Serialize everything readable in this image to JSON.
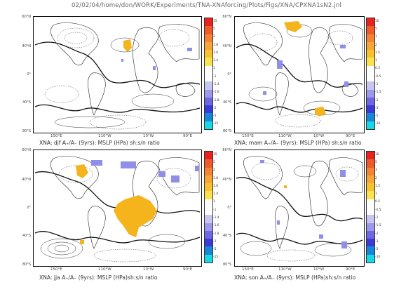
{
  "page_title": "02/02/04/home/don/WORK/Experiments/TNA-XNAforcing/Plots/Figs/XNA/CPXNA1sN2.jnl",
  "lat_labels": [
    "60°N",
    "40°N",
    "0°",
    "40°S",
    "80°S"
  ],
  "lon_labels": [
    "150°E",
    "110°W",
    "10°W",
    "90°E"
  ],
  "panels": [
    {
      "caption": "XNA: djf A₊/A₋ (9yrs): MSLP (HPa) sh:s/n ratio",
      "colorbar_labels": [
        "15",
        "5",
        "2",
        "1.8",
        "1.6",
        "1.4",
        "1",
        "-1",
        "-1.4",
        "-1.6",
        "-1.8",
        "-2",
        "-5",
        "-15"
      ]
    },
    {
      "caption": "XNA: mam A₊/A₋ (9yrs): MSLP (HPa) sh:s/n ratio",
      "colorbar_labels": [
        "10",
        "5",
        "3",
        "2",
        "1.5",
        "1",
        "0.5",
        "-0.5",
        "-1",
        "-1.5",
        "-2",
        "-3",
        "-5",
        "-10"
      ]
    },
    {
      "caption": "XNA: jja A₊/A₋ (9yrs): MSLP (HPa)sh:s/n ratio",
      "colorbar_labels": [
        "15",
        "5",
        "2",
        "1.8",
        "1.6",
        "1.4",
        "1",
        "-1",
        "-1.4",
        "-1.6",
        "-1.8",
        "-2",
        "-5",
        "-15"
      ]
    },
    {
      "caption": "XNA: son A₊/A₋ (9yrs): MSLP (HPa)sh:s/n ratio",
      "colorbar_labels": [
        "10",
        "5",
        "3",
        "2",
        "1.5",
        "1",
        "0.5",
        "-0.5",
        "-1",
        "-1.5",
        "-2",
        "-3",
        "-5",
        "-10"
      ]
    }
  ],
  "colorbar_colors": [
    "#e8231f",
    "#f0592a",
    "#f38436",
    "#f5a53a",
    "#f8c22e",
    "#fbe34f",
    "#ffffff",
    "#ffffff",
    "#c9c5f2",
    "#9d98ea",
    "#7068e2",
    "#3a3ad8",
    "#1687d8",
    "#19d8e6"
  ],
  "colors": {
    "positive": "#f5b31c",
    "negative": "#8f8ee8",
    "contour": "#111111"
  }
}
